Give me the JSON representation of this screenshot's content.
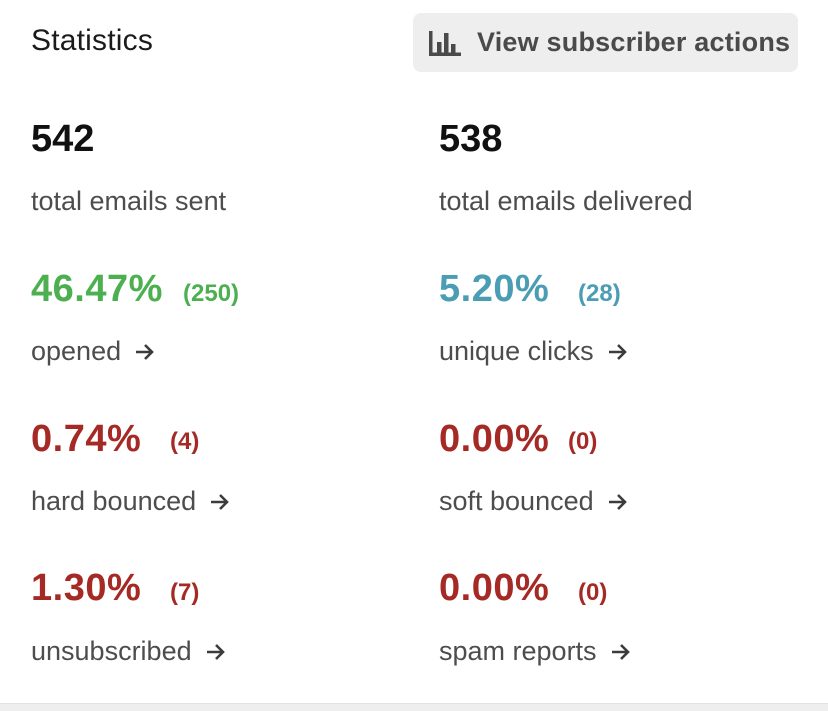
{
  "header": {
    "title": "Statistics",
    "actions_button_label": "View subscriber actions",
    "actions_button_icon": "bar-chart-icon"
  },
  "totals": {
    "sent": {
      "value": "542",
      "label": "total emails sent"
    },
    "delivered": {
      "value": "538",
      "label": "total emails delivered"
    }
  },
  "metrics": {
    "opened": {
      "percent": "46.47%",
      "count": "(250)",
      "label": "opened",
      "color": "#4caf50"
    },
    "unique_clicks": {
      "percent": "5.20%",
      "count": "(28)",
      "label": "unique clicks",
      "color": "#4a9db4"
    },
    "hard_bounced": {
      "percent": "0.74%",
      "count": "(4)",
      "label": "hard bounced",
      "color": "#a52a25"
    },
    "soft_bounced": {
      "percent": "0.00%",
      "count": "(0)",
      "label": "soft bounced",
      "color": "#a52a25"
    },
    "unsubscribed": {
      "percent": "1.30%",
      "count": "(7)",
      "label": "unsubscribed",
      "color": "#a52a25"
    },
    "spam_reports": {
      "percent": "0.00%",
      "count": "(0)",
      "label": "spam reports",
      "color": "#a52a25"
    }
  },
  "icons": {
    "link_arrow": "arrow-right-icon"
  }
}
